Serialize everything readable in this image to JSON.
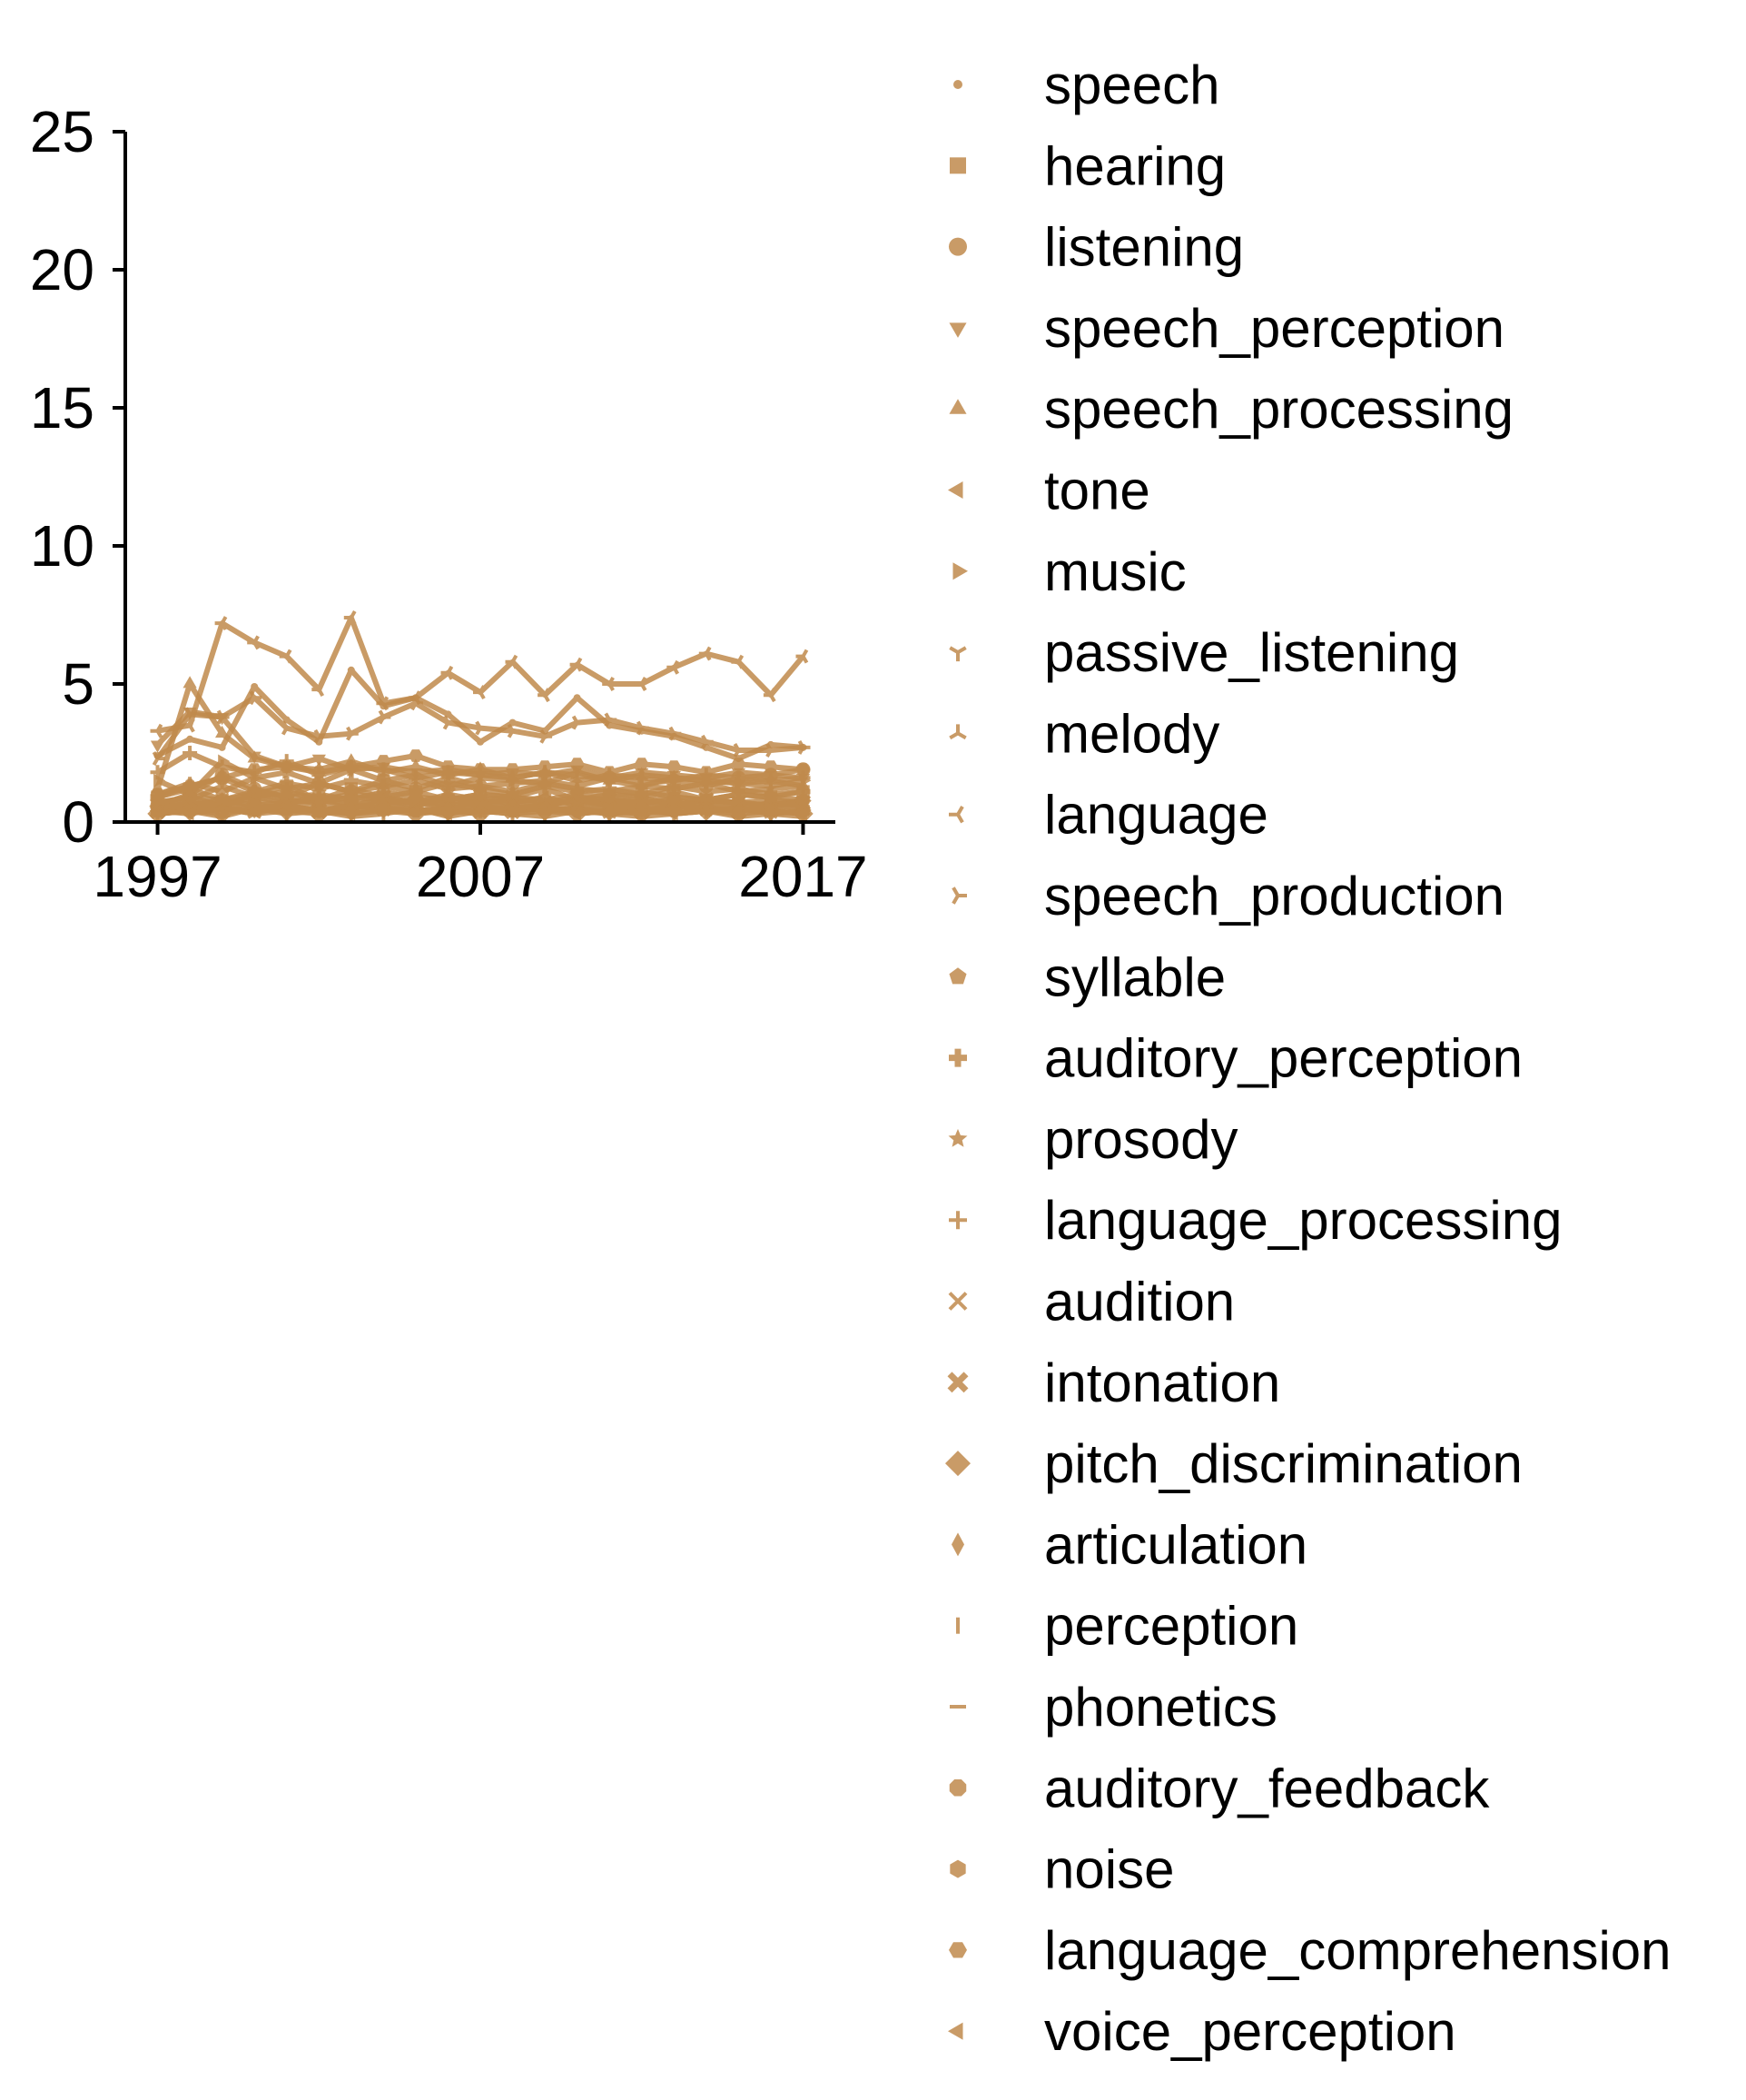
{
  "chart_data": {
    "type": "line",
    "x": [
      1997,
      1998,
      1999,
      2000,
      2001,
      2002,
      2003,
      2004,
      2005,
      2006,
      2007,
      2008,
      2009,
      2010,
      2011,
      2012,
      2013,
      2014,
      2015,
      2016,
      2017
    ],
    "xticks": [
      1997,
      2007,
      2017
    ],
    "xlim": [
      1996,
      2018
    ],
    "ylim": [
      0,
      25
    ],
    "yticks": [
      0,
      5,
      10,
      15,
      20,
      25
    ],
    "title": "",
    "xlabel": "",
    "ylabel": "",
    "grid": false,
    "legend_position": "right",
    "color": "#c08a4c",
    "series": [
      {
        "name": "speech",
        "marker": "point",
        "values": [
          2.4,
          3.0,
          2.7,
          4.9,
          3.7,
          2.9,
          5.5,
          4.2,
          4.5,
          3.9,
          2.9,
          3.6,
          3.3,
          4.5,
          3.5,
          3.3,
          3.1,
          2.7,
          2.3,
          2.8,
          2.7
        ]
      },
      {
        "name": "hearing",
        "marker": "square",
        "values": [
          0.9,
          1.2,
          0.8,
          1.0,
          1.3,
          0.8,
          1.2,
          0.9,
          1.1,
          0.8,
          1.0,
          0.9,
          1.2,
          0.8,
          1.0,
          0.9,
          1.1,
          0.8,
          1.0,
          0.9,
          1.1
        ]
      },
      {
        "name": "listening",
        "marker": "circle",
        "values": [
          0.6,
          1.0,
          1.7,
          1.2,
          0.9,
          1.4,
          1.1,
          1.5,
          1.2,
          1.6,
          1.3,
          1.4,
          1.5,
          1.3,
          1.6,
          1.4,
          1.5,
          1.3,
          1.6,
          1.7,
          1.9
        ]
      },
      {
        "name": "speech_perception",
        "marker": "triangle-down",
        "values": [
          2.8,
          4.0,
          3.8,
          2.4,
          2.0,
          2.3,
          1.9,
          2.0,
          1.8,
          1.9,
          1.7,
          1.8,
          1.7,
          1.9,
          1.6,
          1.8,
          1.7,
          1.6,
          1.8,
          1.7,
          1.6
        ]
      },
      {
        "name": "speech_processing",
        "marker": "triangle-up",
        "values": [
          1.2,
          5.0,
          3.2,
          2.3,
          2.0,
          1.9,
          2.2,
          1.8,
          2.0,
          1.7,
          1.9,
          1.6,
          1.8,
          1.7,
          1.5,
          1.7,
          1.6,
          1.5,
          1.4,
          1.5,
          1.3
        ]
      },
      {
        "name": "tone",
        "marker": "triangle-left",
        "values": [
          0.5,
          0.7,
          0.6,
          0.9,
          0.7,
          0.8,
          0.6,
          0.9,
          0.7,
          0.8,
          0.6,
          0.7,
          0.9,
          0.6,
          0.8,
          0.7,
          0.6,
          0.8,
          0.7,
          0.6,
          0.8
        ]
      },
      {
        "name": "music",
        "marker": "triangle-right",
        "values": [
          1.5,
          1.0,
          2.2,
          1.6,
          1.8,
          1.4,
          1.9,
          1.5,
          1.7,
          1.3,
          1.6,
          1.5,
          1.4,
          1.8,
          1.5,
          1.3,
          1.6,
          1.5,
          1.4,
          1.3,
          1.5
        ]
      },
      {
        "name": "passive_listening",
        "marker": "tri-down",
        "values": [
          0.3,
          0.4,
          0.2,
          0.5,
          0.3,
          0.4,
          0.2,
          0.3,
          0.5,
          0.2,
          0.4,
          0.3,
          0.2,
          0.4,
          0.3,
          0.2,
          0.3,
          0.4,
          0.2,
          0.3,
          0.2
        ]
      },
      {
        "name": "melody",
        "marker": "tri-up",
        "values": [
          0.4,
          0.6,
          0.5,
          0.3,
          0.6,
          0.4,
          0.5,
          0.7,
          0.4,
          0.5,
          0.3,
          0.6,
          0.4,
          0.5,
          0.3,
          0.4,
          0.6,
          0.4,
          0.5,
          0.3,
          0.4
        ]
      },
      {
        "name": "language",
        "marker": "tri-left",
        "values": [
          3.3,
          3.5,
          7.2,
          6.5,
          6.0,
          4.8,
          7.4,
          4.3,
          4.5,
          5.4,
          4.7,
          5.8,
          4.6,
          5.7,
          5.0,
          5.0,
          5.6,
          6.1,
          5.8,
          4.6,
          6.0
        ]
      },
      {
        "name": "speech_production",
        "marker": "tri-right",
        "values": [
          2.3,
          3.9,
          3.8,
          4.5,
          3.4,
          3.1,
          3.2,
          3.8,
          4.3,
          3.6,
          3.4,
          3.3,
          3.1,
          3.6,
          3.7,
          3.4,
          3.2,
          2.9,
          2.6,
          2.6,
          2.7
        ]
      },
      {
        "name": "syllable",
        "marker": "pentagon",
        "values": [
          0.7,
          0.9,
          0.6,
          1.0,
          0.8,
          0.7,
          0.9,
          0.8,
          0.6,
          0.9,
          0.7,
          0.8,
          0.6,
          0.8,
          0.7,
          0.9,
          0.6,
          0.8,
          0.7,
          0.6,
          0.8
        ]
      },
      {
        "name": "auditory_perception",
        "marker": "plus-filled",
        "values": [
          0.9,
          1.3,
          1.6,
          1.1,
          1.4,
          1.2,
          1.5,
          1.3,
          1.1,
          1.4,
          1.2,
          1.0,
          1.3,
          1.1,
          1.2,
          1.0,
          1.3,
          1.1,
          1.2,
          1.0,
          1.1
        ]
      },
      {
        "name": "prosody",
        "marker": "star",
        "values": [
          0.5,
          0.6,
          0.8,
          0.6,
          0.7,
          0.9,
          0.6,
          0.8,
          0.7,
          0.6,
          0.8,
          0.7,
          0.6,
          0.8,
          0.6,
          0.7,
          0.8,
          0.6,
          0.7,
          0.6,
          0.7
        ]
      },
      {
        "name": "language_processing",
        "marker": "plus",
        "values": [
          1.8,
          2.5,
          2.0,
          1.8,
          2.2,
          1.7,
          2.0,
          1.9,
          1.6,
          1.8,
          1.7,
          1.6,
          1.8,
          1.5,
          1.7,
          1.6,
          1.5,
          1.7,
          1.6,
          1.5,
          1.6
        ]
      },
      {
        "name": "audition",
        "marker": "x",
        "values": [
          0.6,
          0.8,
          1.3,
          0.9,
          1.1,
          0.8,
          1.0,
          0.9,
          0.7,
          1.0,
          0.8,
          0.9,
          0.7,
          0.9,
          0.8,
          0.7,
          0.9,
          0.8,
          0.7,
          0.8,
          0.7
        ]
      },
      {
        "name": "intonation",
        "marker": "x-filled",
        "values": [
          0.4,
          0.5,
          0.7,
          0.5,
          0.6,
          0.4,
          0.6,
          0.5,
          0.7,
          0.5,
          0.6,
          0.4,
          0.5,
          0.6,
          0.5,
          0.4,
          0.6,
          0.5,
          0.4,
          0.5,
          0.6
        ]
      },
      {
        "name": "pitch_discrimination",
        "marker": "diamond",
        "values": [
          0.3,
          0.4,
          0.3,
          0.5,
          0.4,
          0.3,
          0.4,
          0.5,
          0.3,
          0.4,
          0.3,
          0.5,
          0.4,
          0.3,
          0.4,
          0.3,
          0.5,
          0.4,
          0.3,
          0.4,
          0.3
        ]
      },
      {
        "name": "articulation",
        "marker": "thin-diamond",
        "values": [
          0.5,
          0.7,
          0.6,
          0.8,
          0.6,
          0.7,
          0.5,
          0.7,
          0.8,
          0.6,
          0.7,
          0.5,
          0.6,
          0.8,
          0.6,
          0.5,
          0.7,
          0.6,
          0.5,
          0.7,
          0.6
        ]
      },
      {
        "name": "perception",
        "marker": "vline",
        "values": [
          1.0,
          1.4,
          1.1,
          1.6,
          1.2,
          1.4,
          1.1,
          1.3,
          1.5,
          1.2,
          1.3,
          1.1,
          1.4,
          1.2,
          1.1,
          1.3,
          1.2,
          1.4,
          1.1,
          1.2,
          1.3
        ]
      },
      {
        "name": "phonetics",
        "marker": "hline",
        "values": [
          0.3,
          0.4,
          0.5,
          0.3,
          0.4,
          0.5,
          0.3,
          0.4,
          0.3,
          0.5,
          0.4,
          0.3,
          0.4,
          0.5,
          0.3,
          0.4,
          0.3,
          0.4,
          0.5,
          0.3,
          0.4
        ]
      },
      {
        "name": "auditory_feedback",
        "marker": "octagon",
        "values": [
          0.4,
          0.5,
          0.4,
          0.6,
          0.5,
          0.4,
          0.6,
          0.5,
          0.4,
          0.5,
          0.6,
          0.4,
          0.5,
          0.4,
          0.6,
          0.5,
          0.4,
          0.5,
          0.4,
          0.6,
          0.5
        ]
      },
      {
        "name": "noise",
        "marker": "hexagon",
        "values": [
          0.7,
          0.9,
          0.8,
          1.1,
          0.9,
          1.0,
          0.8,
          1.1,
          0.9,
          0.8,
          1.0,
          0.9,
          0.8,
          1.0,
          0.9,
          1.1,
          0.9,
          0.8,
          1.0,
          0.9,
          0.8
        ]
      },
      {
        "name": "language_comprehension",
        "marker": "hexagon2",
        "values": [
          1.0,
          1.3,
          1.6,
          1.9,
          2.0,
          1.8,
          2.0,
          2.2,
          2.4,
          2.0,
          1.9,
          1.9,
          2.0,
          2.1,
          1.8,
          2.1,
          2.0,
          1.8,
          2.1,
          2.0,
          1.9
        ]
      },
      {
        "name": "voice_perception",
        "marker": "triangle-left",
        "values": [
          0.4,
          0.3,
          0.5,
          0.4,
          0.6,
          0.4,
          0.3,
          0.5,
          0.4,
          0.3,
          0.5,
          0.4,
          0.6,
          0.3,
          0.4,
          0.5,
          0.3,
          0.4,
          0.5,
          0.4,
          0.3
        ]
      }
    ]
  }
}
